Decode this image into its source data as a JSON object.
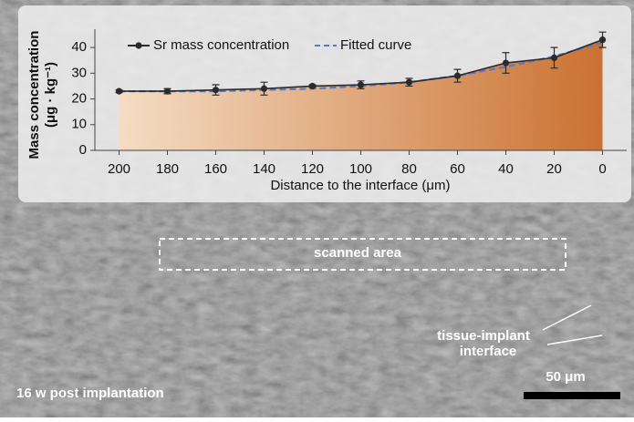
{
  "chart_data": {
    "type": "line",
    "x_label": "Distance to the interface (μm)",
    "y_label": [
      "Mass concentration",
      "(μg · kg⁻¹)"
    ],
    "x": [
      200,
      180,
      160,
      140,
      120,
      100,
      80,
      60,
      40,
      20,
      0
    ],
    "xlim": [
      210,
      -10
    ],
    "xticks": [
      200,
      180,
      160,
      140,
      120,
      100,
      80,
      60,
      40,
      20,
      0
    ],
    "ylim": [
      0,
      45
    ],
    "yticks": [
      0,
      10,
      20,
      30,
      40
    ],
    "series": [
      {
        "name": "Sr mass concentration",
        "color": "#2b2b2b",
        "values": [
          23,
          23,
          23.5,
          24,
          25,
          25.5,
          26.5,
          29,
          34,
          36,
          43
        ],
        "errors": [
          0.5,
          1,
          2,
          2.5,
          0.5,
          1.5,
          1.5,
          2.5,
          4,
          4,
          3
        ]
      },
      {
        "name": "Fitted curve",
        "color": "#5b79c0",
        "dashed": true,
        "values": [
          23,
          23,
          23,
          23.5,
          24,
          25,
          26.5,
          29,
          32.5,
          36.5,
          42
        ]
      }
    ],
    "area_color": [
      "#f6dcc0",
      "#c8651e"
    ]
  },
  "annotations": {
    "region": "scanned area",
    "interface": [
      "tissue-implant",
      "interface"
    ],
    "caption": "16 w post implantation",
    "scale_bar": "50 μm"
  }
}
